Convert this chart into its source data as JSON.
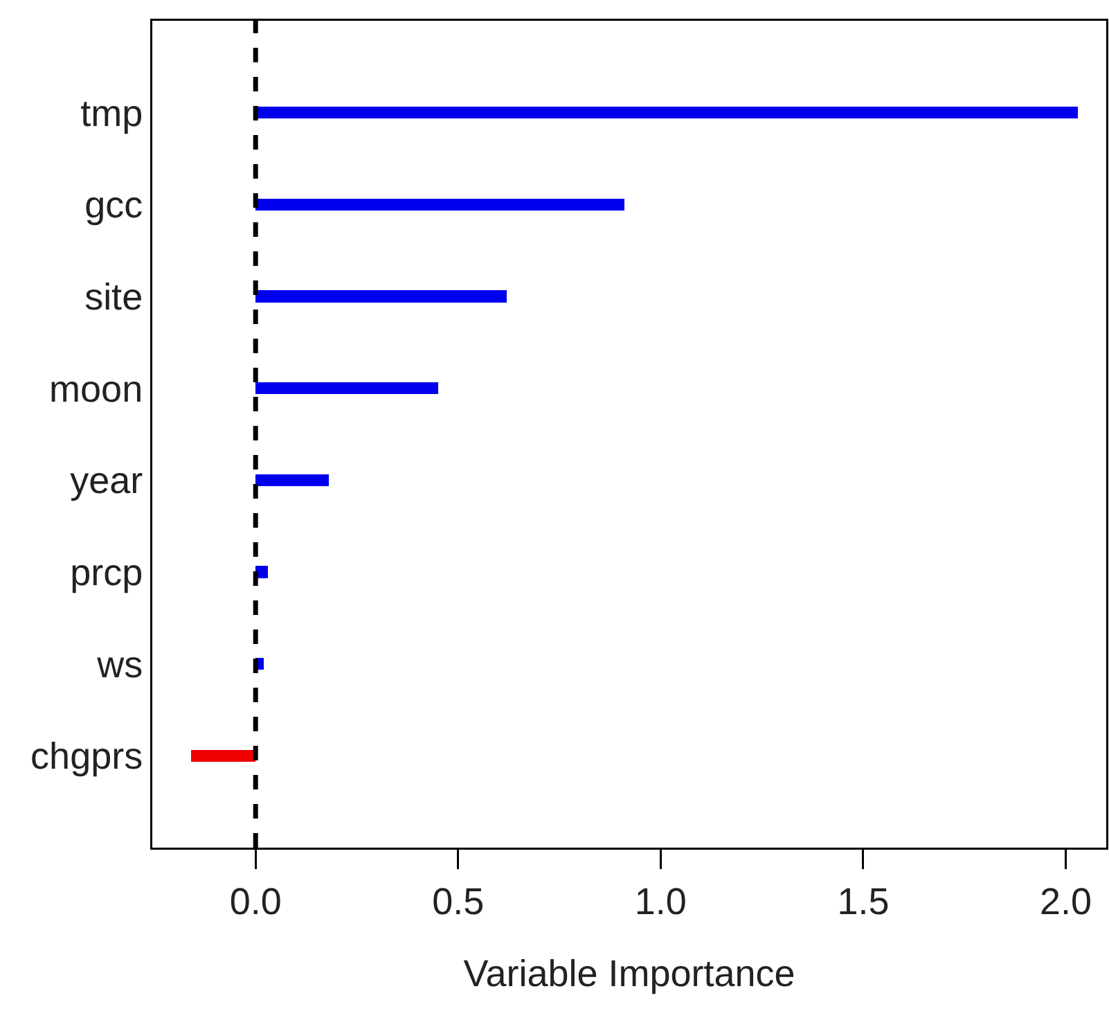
{
  "chart_data": {
    "type": "bar",
    "orientation": "horizontal",
    "xlabel": "Variable Importance",
    "categories": [
      "tmp",
      "gcc",
      "site",
      "moon",
      "year",
      "prcp",
      "ws",
      "chgprs"
    ],
    "values": [
      2.03,
      0.91,
      0.62,
      0.45,
      0.18,
      0.03,
      0.02,
      -0.16
    ],
    "colors": [
      "#0000ee",
      "#0000ee",
      "#0000ee",
      "#0000ee",
      "#0000ee",
      "#0000ee",
      "#0000ee",
      "#ee0000"
    ],
    "xlim": [
      -0.255,
      2.1
    ],
    "xticks": [
      {
        "value": 0,
        "label": "0.0"
      },
      {
        "value": 0.5,
        "label": "0.5"
      },
      {
        "value": 1,
        "label": "1.0"
      },
      {
        "value": 1.5,
        "label": "1.5"
      },
      {
        "value": 2,
        "label": "2.0"
      }
    ],
    "ref_lines": [
      {
        "axis": "x",
        "value": 0,
        "color": "#000000",
        "line_style": "dashed"
      }
    ],
    "grid": false,
    "legend": false
  }
}
